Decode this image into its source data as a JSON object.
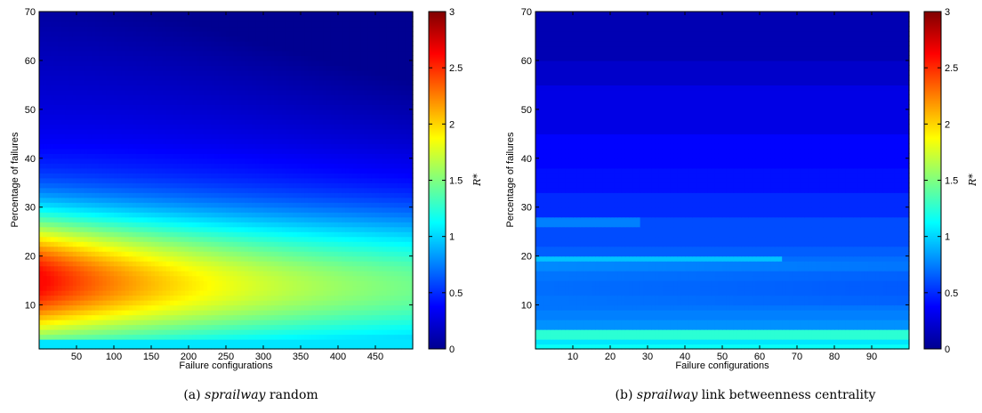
{
  "chart_data": [
    {
      "type": "heatmap",
      "caption_prefix": "(a)",
      "caption_italic": "sprailway",
      "caption_rest": "random",
      "xlabel": "Failure configurations",
      "ylabel": "Percentage of failures",
      "colorbar_label": "R*",
      "xlim": [
        0,
        500
      ],
      "ylim": [
        1,
        70
      ],
      "xticks": [
        50,
        100,
        150,
        200,
        250,
        300,
        350,
        400,
        450
      ],
      "yticks": [
        10,
        20,
        30,
        40,
        50,
        60,
        70
      ],
      "clim": [
        0,
        3
      ],
      "cticks": [
        "0",
        "0.5",
        "1",
        "1.5",
        "2",
        "2.5",
        "3"
      ],
      "colormap": "jet",
      "approx_values": "R* highest (~2.0-2.4) at low configurations and 10-25% failures, decaying toward ~0.2 at top-right; ~1.0 along bottom row"
    },
    {
      "type": "heatmap",
      "caption_prefix": "(b)",
      "caption_italic": "sprailway",
      "caption_rest": "link betweenness centrality",
      "xlabel": "Failure configurations",
      "ylabel": "Percentage of failures",
      "colorbar_label": "R*",
      "xlim": [
        0,
        100
      ],
      "ylim": [
        1,
        70
      ],
      "xticks": [
        10,
        20,
        30,
        40,
        50,
        60,
        70,
        80,
        90
      ],
      "yticks": [
        10,
        20,
        30,
        40,
        50,
        60,
        70
      ],
      "clim": [
        0,
        3
      ],
      "cticks": [
        "0",
        "0.5",
        "1",
        "1.5",
        "2",
        "2.5",
        "3"
      ],
      "colormap": "jet",
      "approx_values": "horizontal bands; ~1.2 at 1-5% failures, ~0.8-1.0 near 19-20% and 27-28%, decaying to ~0.2 at top"
    }
  ]
}
